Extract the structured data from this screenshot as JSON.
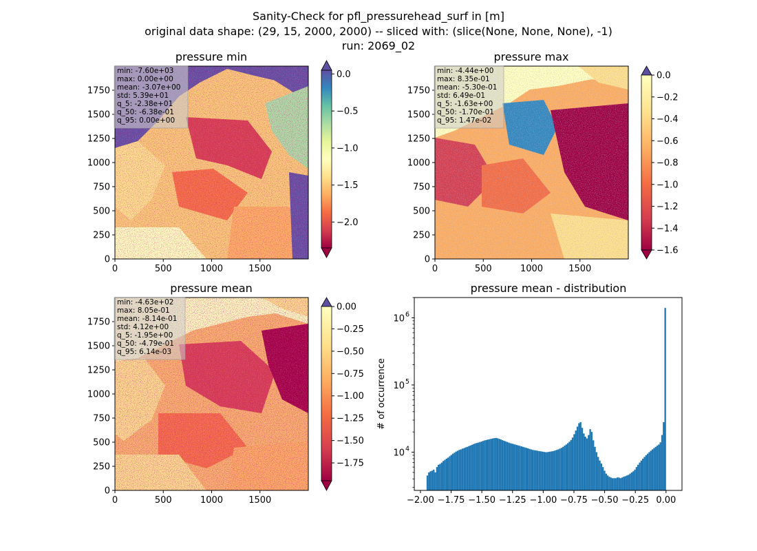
{
  "figure": {
    "title_lines": [
      "Sanity-Check for pfl_pressurehead_surf in [m]",
      "original data shape: (29, 15, 2000, 2000) -- sliced with: (slice(None, None, None), -1)",
      "run: 2069_02"
    ]
  },
  "chart_data": [
    {
      "type": "heatmap",
      "title": "pressure min",
      "x_ticks": [
        0,
        500,
        1000,
        1500
      ],
      "y_ticks": [
        0,
        250,
        500,
        750,
        1000,
        1250,
        1500,
        1750
      ],
      "xlim": [
        0,
        2000
      ],
      "ylim": [
        0,
        2000
      ],
      "colormap": "Spectral",
      "colorbar": {
        "ticks": [
          "0.0",
          "−0.5",
          "−1.0",
          "−1.5",
          "−2.0"
        ],
        "values": [
          0.0,
          -0.5,
          -1.0,
          -1.5,
          -2.0
        ],
        "range": [
          -2.35,
          0.05
        ],
        "extend_top": true,
        "extend_bottom": true
      },
      "stats": [
        "min: -7.60e+03",
        "max: 0.00e+00",
        "mean: -3.07e+00",
        "std: 5.39e+01",
        "q_5: -2.38e+01",
        "q_50: -6.38e-01",
        "q_95: 0.00e+00"
      ]
    },
    {
      "type": "heatmap",
      "title": "pressure max",
      "x_ticks": [
        0,
        500,
        1000,
        1500
      ],
      "y_ticks": [
        0,
        250,
        500,
        750,
        1000,
        1250,
        1500,
        1750
      ],
      "xlim": [
        0,
        2000
      ],
      "ylim": [
        0,
        2000
      ],
      "colormap": "Spectral",
      "colorbar": {
        "ticks": [
          "0.0",
          "−0.2",
          "−0.4",
          "−0.6",
          "−0.8",
          "−1.0",
          "−1.2",
          "−1.4",
          "−1.6"
        ],
        "values": [
          0.0,
          -0.2,
          -0.4,
          -0.6,
          -0.8,
          -1.0,
          -1.2,
          -1.4,
          -1.6
        ],
        "range": [
          -1.6,
          0.0
        ],
        "extend_top": true,
        "extend_bottom": true
      },
      "stats": [
        "min: -4.44e+00",
        "max: 8.35e-01",
        "mean: -5.30e-01",
        "std: 6.49e-01",
        "q_5: -1.63e+00",
        "q_50: -1.70e-01",
        "q_95: 1.47e-02"
      ]
    },
    {
      "type": "heatmap",
      "title": "pressure mean",
      "x_ticks": [
        0,
        500,
        1000,
        1500
      ],
      "y_ticks": [
        0,
        250,
        500,
        750,
        1000,
        1250,
        1500,
        1750
      ],
      "xlim": [
        0,
        2000
      ],
      "ylim": [
        0,
        2000
      ],
      "colormap": "Spectral",
      "colorbar": {
        "ticks": [
          "0.00",
          "−0.25",
          "−0.50",
          "−0.75",
          "−1.00",
          "−1.25",
          "−1.50",
          "−1.75"
        ],
        "values": [
          0.0,
          -0.25,
          -0.5,
          -0.75,
          -1.0,
          -1.25,
          -1.5,
          -1.75
        ],
        "range": [
          -1.95,
          0.0
        ],
        "extend_top": true,
        "extend_bottom": true
      },
      "stats": [
        "min: -4.63e+02",
        "max: 8.05e-01",
        "mean: -8.14e-01",
        "std: 4.12e+00",
        "q_5: -1.95e+00",
        "q_50: -4.79e-01",
        "q_95: 6.14e-03"
      ]
    },
    {
      "type": "bar",
      "title": "pressure mean - distribution",
      "ylabel": "# of occurrence",
      "xlabel": "",
      "yscale": "log",
      "xlim": [
        -2.05,
        0.13
      ],
      "ylim": [
        2700,
        2000000
      ],
      "x_ticks": [
        -2.0,
        -1.75,
        -1.5,
        -1.25,
        -1.0,
        -0.75,
        -0.5,
        -0.25,
        0.0
      ],
      "x_tick_labels": [
        "−2.00",
        "−1.75",
        "−1.50",
        "−1.25",
        "−1.00",
        "−0.75",
        "−0.50",
        "−0.25",
        "0.00"
      ],
      "y_tick_labels": [
        {
          "value": 10000,
          "base": "10",
          "exp": "4"
        },
        {
          "value": 100000,
          "base": "10",
          "exp": "5"
        },
        {
          "value": 1000000,
          "base": "10",
          "exp": "6"
        }
      ],
      "bar_color": "#1f77b4",
      "bin_range": [
        -1.95,
        0.0
      ],
      "series": [
        {
          "values": [
            4500,
            5000,
            5200,
            5300,
            5500,
            5000,
            6000,
            6500,
            6700,
            7000,
            7400,
            7700,
            8000,
            8300,
            8700,
            9100,
            9500,
            9800,
            10200,
            10500,
            10800,
            11000,
            11300,
            11500,
            11800,
            12000,
            12300,
            12600,
            12900,
            13200,
            13500,
            13700,
            13900,
            14200,
            14400,
            14700,
            15000,
            15200,
            15400,
            15600,
            15800,
            16000,
            16200,
            16300,
            16100,
            15800,
            15500,
            15100,
            14800,
            14500,
            14200,
            13900,
            13600,
            13400,
            13200,
            13000,
            12800,
            12600,
            12400,
            12200,
            12000,
            11800,
            11600,
            11400,
            11200,
            11000,
            10800,
            10700,
            10600,
            10500,
            10400,
            10300,
            10200,
            10100,
            10000,
            10000,
            10100,
            10200,
            10300,
            10400,
            10600,
            10800,
            11000,
            11300,
            11600,
            12000,
            12500,
            13000,
            13600,
            14300,
            15200,
            16500,
            18500,
            21000,
            24000,
            27000,
            28000,
            23000,
            19000,
            17000,
            16000,
            18000,
            22000,
            20000,
            15000,
            12000,
            10000,
            8500,
            7500,
            6800,
            6000,
            5300,
            4800,
            4500,
            4300,
            4200,
            4100,
            4100,
            4100,
            4200,
            4200,
            4100,
            4200,
            4300,
            4400,
            4500,
            4600,
            4800,
            5000,
            5200,
            5500,
            6000,
            6500,
            7000,
            7500,
            8000,
            8500,
            9000,
            9500,
            10000,
            10500,
            11000,
            11500,
            12000,
            12500,
            13000,
            14000,
            18000,
            28000,
            1400000
          ]
        }
      ]
    }
  ]
}
